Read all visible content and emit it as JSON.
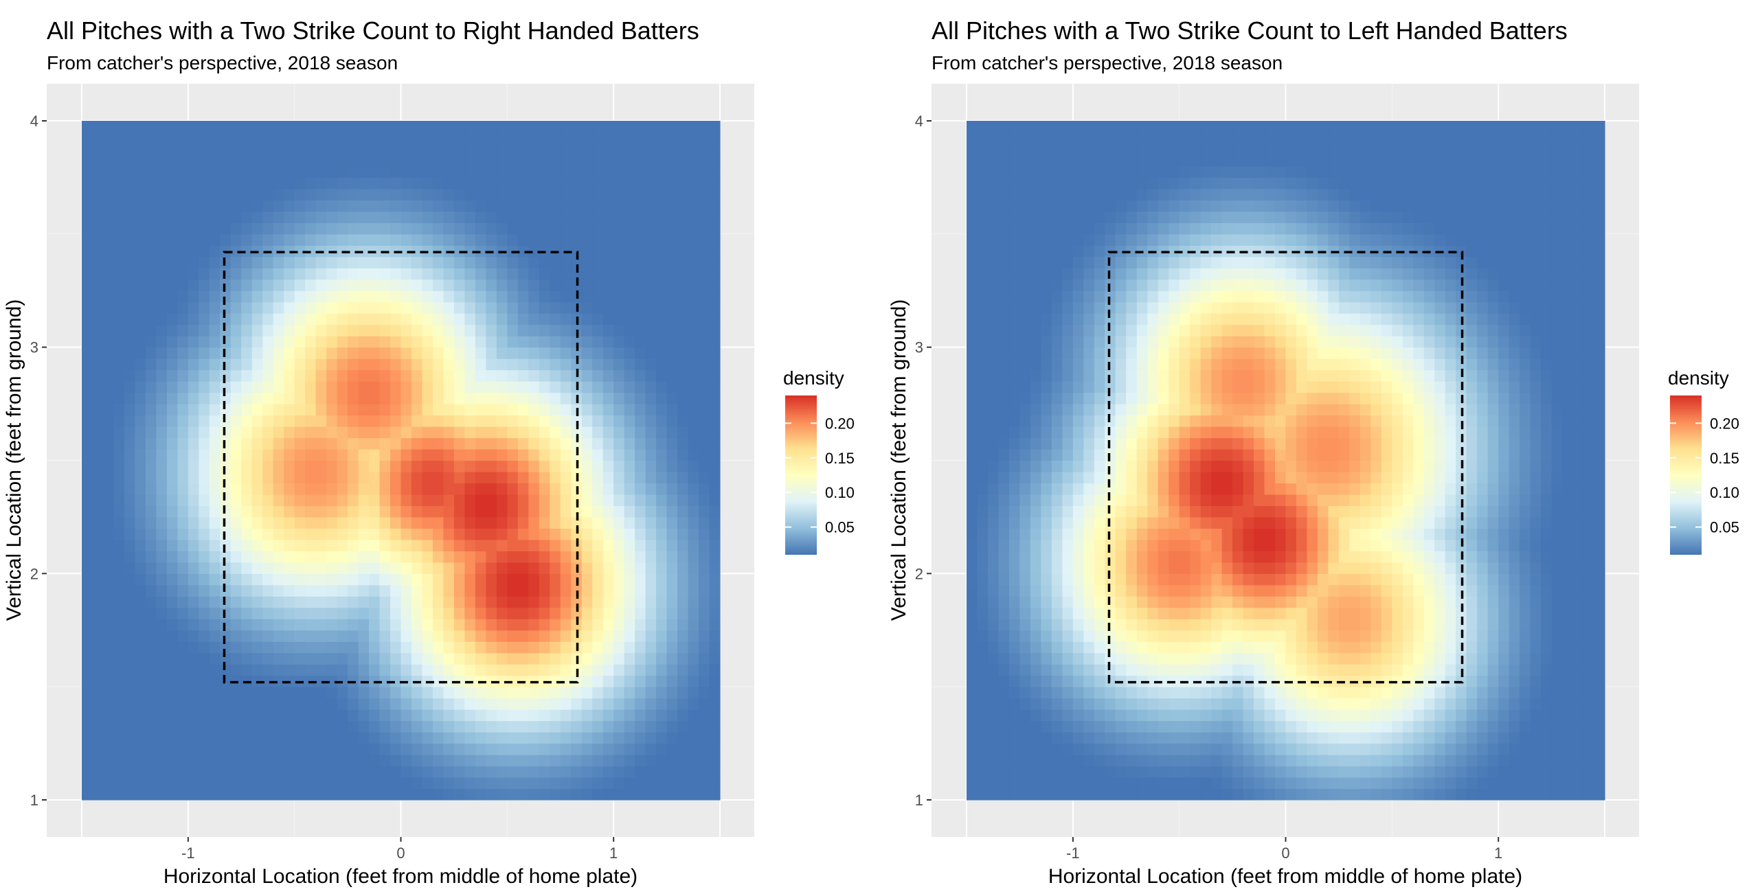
{
  "chart_data": [
    {
      "type": "heatmap",
      "title": "All Pitches with a Two Strike Count to Right Handed Batters",
      "subtitle": "From catcher's perspective, 2018 season",
      "xlabel": "Horizontal Location (feet from middle of home plate)",
      "ylabel": "Vertical Location (feet from ground)",
      "xlim": [
        -1.5,
        1.5
      ],
      "ylim": [
        1.0,
        4.0
      ],
      "x_ticks": [
        -1,
        0,
        1
      ],
      "x_tick_labels": [
        "-1",
        "0",
        "1"
      ],
      "y_ticks": [
        1,
        2,
        3,
        4
      ],
      "y_tick_labels": [
        "1",
        "2",
        "3",
        "4"
      ],
      "grid": true,
      "legend": {
        "title": "density",
        "position": "right",
        "breaks": [
          0.05,
          0.1,
          0.15,
          0.2
        ],
        "labels": [
          "0.05",
          "0.10",
          "0.15",
          "0.20"
        ],
        "range": [
          0.01,
          0.24
        ]
      },
      "colorscale": [
        "#4575b4",
        "#91bfdb",
        "#e0f3f8",
        "#ffffbf",
        "#fee090",
        "#fc8d59",
        "#d73027"
      ],
      "strike_zone": {
        "x": [
          -0.83,
          0.83
        ],
        "y": [
          1.52,
          3.42
        ]
      },
      "density_peaks": [
        {
          "x": 0.55,
          "y": 1.95,
          "value": 0.24,
          "spread": 0.4
        },
        {
          "x": 0.4,
          "y": 2.3,
          "value": 0.24,
          "spread": 0.4
        },
        {
          "x": 0.15,
          "y": 2.4,
          "value": 0.23,
          "spread": 0.35
        },
        {
          "x": -0.15,
          "y": 2.8,
          "value": 0.21,
          "spread": 0.4
        },
        {
          "x": -0.4,
          "y": 2.45,
          "value": 0.2,
          "spread": 0.4
        }
      ]
    },
    {
      "type": "heatmap",
      "title": "All Pitches with a Two Strike Count to Left Handed Batters",
      "subtitle": "From catcher's perspective, 2018 season",
      "xlabel": "Horizontal Location (feet from middle of home plate)",
      "ylabel": "Vertical Location (feet from ground)",
      "xlim": [
        -1.5,
        1.5
      ],
      "ylim": [
        1.0,
        4.0
      ],
      "x_ticks": [
        -1,
        0,
        1
      ],
      "x_tick_labels": [
        "-1",
        "0",
        "1"
      ],
      "y_ticks": [
        1,
        2,
        3,
        4
      ],
      "y_tick_labels": [
        "1",
        "2",
        "3",
        "4"
      ],
      "grid": true,
      "legend": {
        "title": "density",
        "position": "right",
        "breaks": [
          0.05,
          0.1,
          0.15,
          0.2
        ],
        "labels": [
          "0.05",
          "0.10",
          "0.15",
          "0.20"
        ],
        "range": [
          0.01,
          0.24
        ]
      },
      "colorscale": [
        "#4575b4",
        "#91bfdb",
        "#e0f3f8",
        "#ffffbf",
        "#fee090",
        "#fc8d59",
        "#d73027"
      ],
      "strike_zone": {
        "x": [
          -0.83,
          0.83
        ],
        "y": [
          1.52,
          3.42
        ]
      },
      "density_peaks": [
        {
          "x": -0.3,
          "y": 2.4,
          "value": 0.24,
          "spread": 0.4
        },
        {
          "x": -0.1,
          "y": 2.15,
          "value": 0.24,
          "spread": 0.4
        },
        {
          "x": -0.5,
          "y": 2.05,
          "value": 0.21,
          "spread": 0.4
        },
        {
          "x": 0.2,
          "y": 2.55,
          "value": 0.2,
          "spread": 0.45
        },
        {
          "x": -0.2,
          "y": 2.85,
          "value": 0.2,
          "spread": 0.4
        },
        {
          "x": 0.3,
          "y": 1.8,
          "value": 0.19,
          "spread": 0.4
        }
      ]
    }
  ]
}
